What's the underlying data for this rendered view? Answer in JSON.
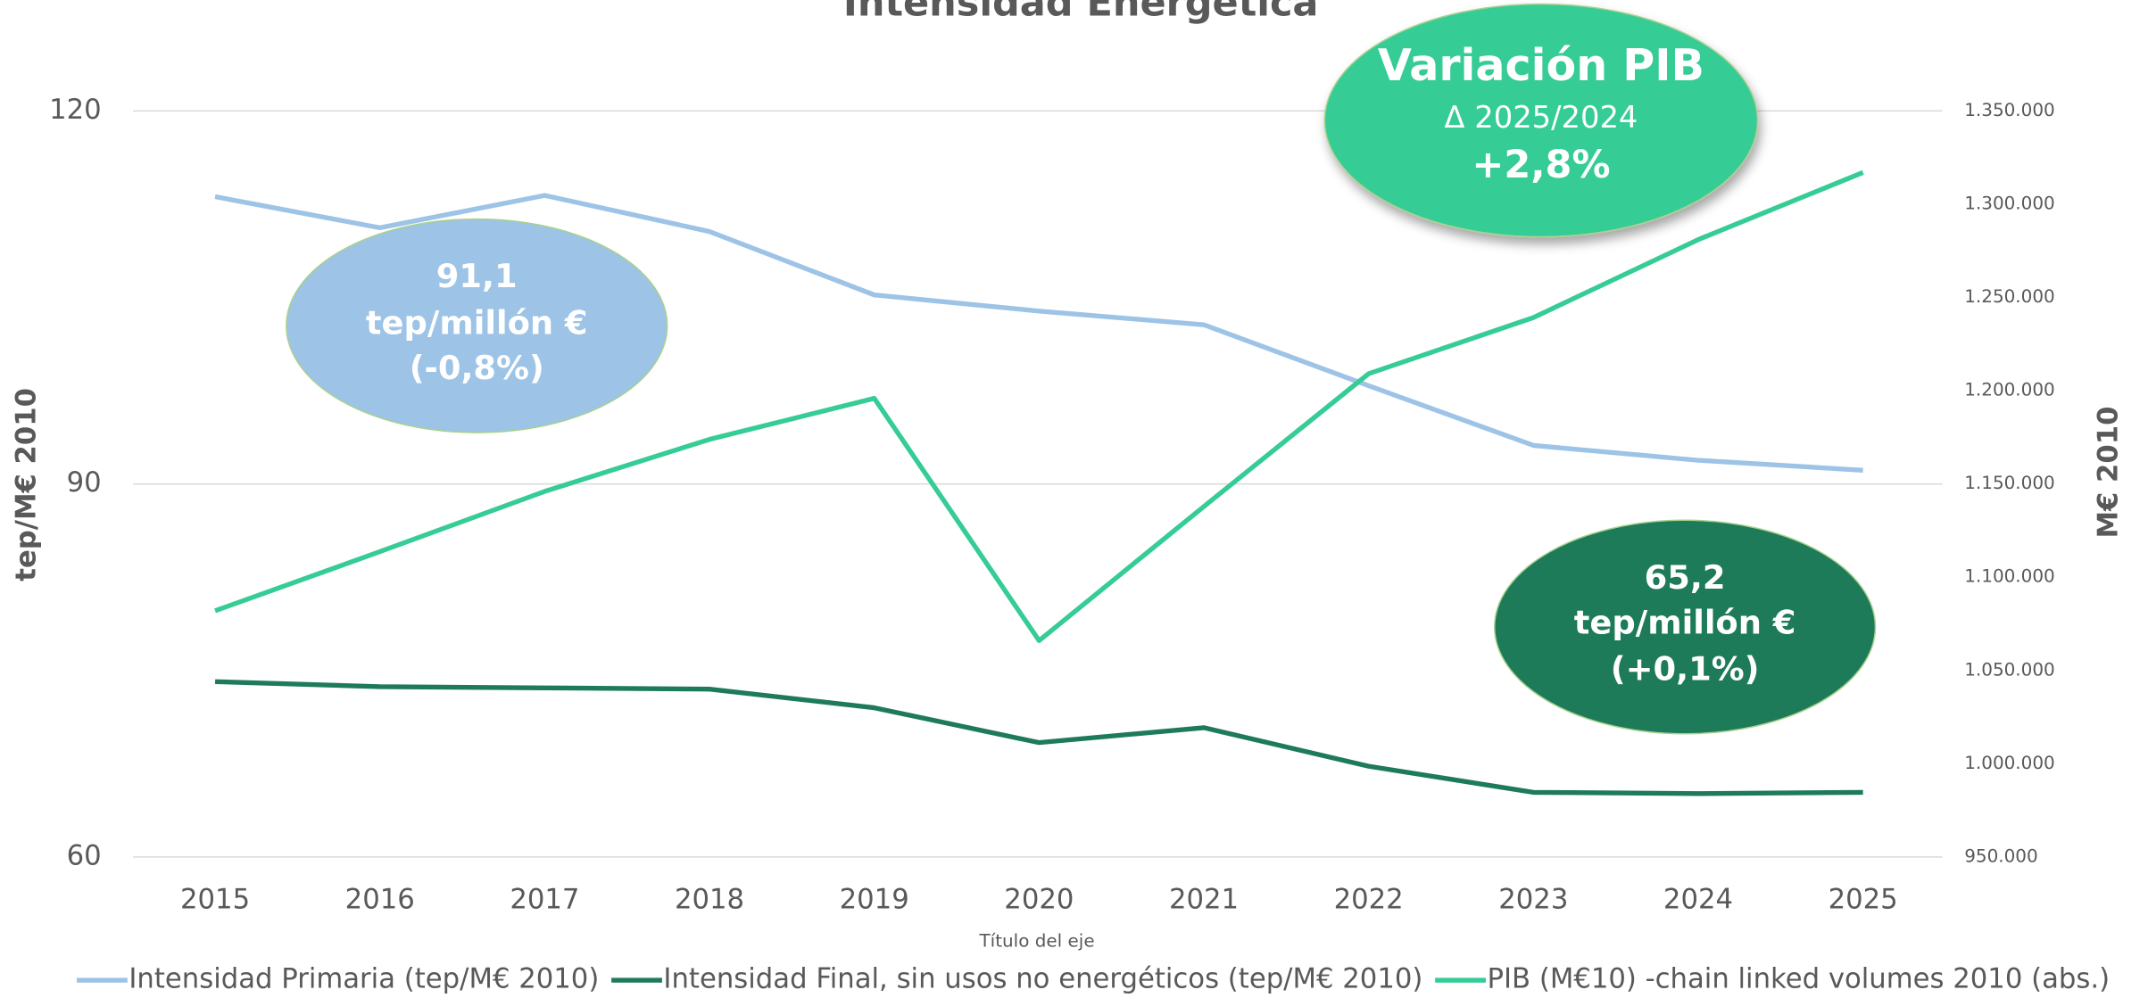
{
  "chart_data": {
    "type": "line",
    "title": "Intensidad Energética",
    "x_label": "Título del eje",
    "y_label": "tep/M€ 2010",
    "y2_label": "M€ 2010",
    "categories": [
      "2015",
      "2016",
      "2017",
      "2018",
      "2019",
      "2020",
      "2021",
      "2022",
      "2023",
      "2024",
      "2025"
    ],
    "ylim": [
      60,
      120
    ],
    "yticks": [
      60,
      90,
      120
    ],
    "y2lim": [
      950000,
      1350000
    ],
    "y2ticks": [
      {
        "value": 950000,
        "label": "950.000"
      },
      {
        "value": 1000000,
        "label": "1.000.000"
      },
      {
        "value": 1050000,
        "label": "1.050.000"
      },
      {
        "value": 1100000,
        "label": "1.100.000"
      },
      {
        "value": 1150000,
        "label": "1.150.000"
      },
      {
        "value": 1200000,
        "label": "1.200.000"
      },
      {
        "value": 1250000,
        "label": "1.250.000"
      },
      {
        "value": 1300000,
        "label": "1.300.000"
      },
      {
        "value": 1350000,
        "label": "1.350.000"
      }
    ],
    "grid": true,
    "legend": "bottom",
    "series": [
      {
        "name": "Intensidad Primaria (tep/M€ 2010)",
        "color": "#9dc3e6",
        "values": [
          113.1,
          110.6,
          113.2,
          110.3,
          105.2,
          103.9,
          102.8,
          97.9,
          93.1,
          91.9,
          91.1
        ]
      },
      {
        "name": "Intensidad Final, sin usos no energéticos (tep/M€ 2010)",
        "color": "#1e7b5a",
        "values": [
          74.1,
          73.7,
          73.6,
          73.5,
          72.0,
          69.2,
          70.4,
          67.3,
          65.2,
          65.1,
          65.2
        ]
      },
      {
        "name": "PIB (M€10) -chain linked volumes 2010 (abs.)",
        "color": "#36cc96",
        "axis": "y2",
        "values": [
          1082000,
          1113700,
          1146000,
          1173900,
          1195900,
          1066000,
          1137900,
          1209100,
          1239200,
          1281000,
          1317000
        ]
      }
    ],
    "annotations": [
      {
        "lines": [
          "91,1",
          "tep/millón €",
          "(-0,8%)"
        ],
        "color": "#9dc3e6"
      },
      {
        "lines": [
          "Variación PIB",
          "Δ 2025/2024",
          "+2,8%"
        ],
        "color": "#36cc96"
      },
      {
        "lines": [
          "65,2",
          "tep/millón €",
          "(+0,1%)"
        ],
        "color": "#1e7b5a"
      }
    ]
  }
}
